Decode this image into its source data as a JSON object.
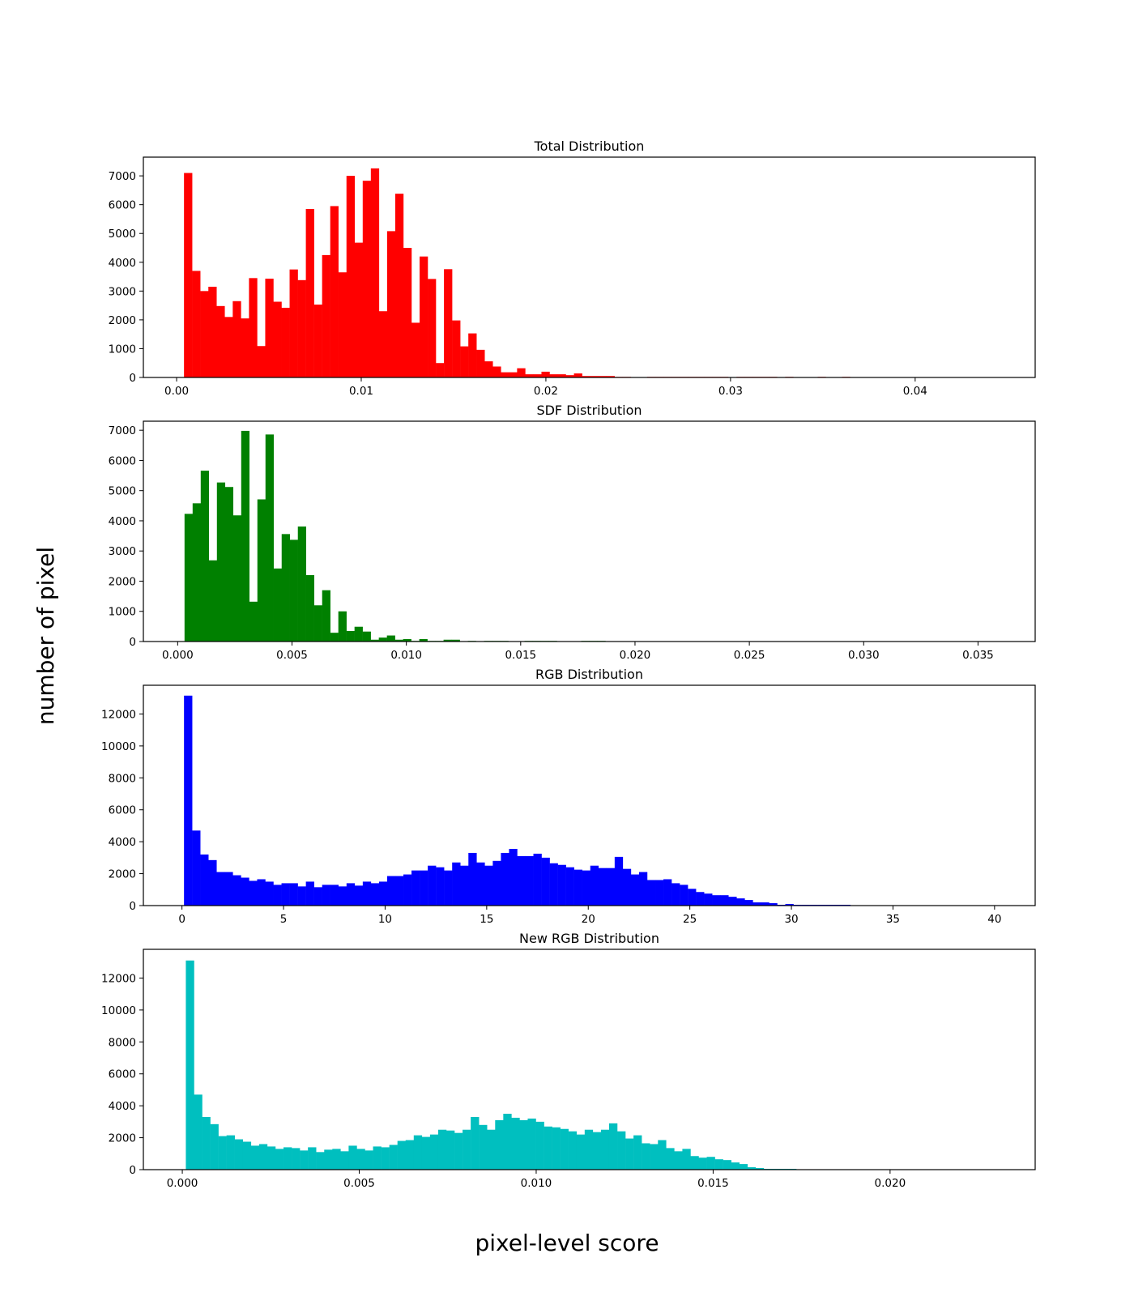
{
  "figure": {
    "xlabel": "pixel-level score",
    "ylabel": "number of pixel"
  },
  "chart_data": [
    {
      "type": "bar",
      "title": "Total Distribution",
      "xlabel": "",
      "ylabel": "",
      "color": "#ff0000",
      "xlim": [
        -0.0018,
        0.0465
      ],
      "ylim": [
        0,
        7650
      ],
      "xticks": [
        0.0,
        0.01,
        0.02,
        0.03,
        0.04
      ],
      "xtick_labels": [
        "0.00",
        "0.01",
        "0.02",
        "0.03",
        "0.04"
      ],
      "yticks": [
        0,
        1000,
        2000,
        3000,
        4000,
        5000,
        6000,
        7000
      ],
      "ytick_labels": [
        "0",
        "1000",
        "2000",
        "3000",
        "4000",
        "5000",
        "6000",
        "7000"
      ],
      "bin_start": 0.0004,
      "bin_width": 0.00044,
      "values": [
        7100,
        3700,
        3000,
        3150,
        2480,
        2100,
        2650,
        2050,
        3450,
        1090,
        3430,
        2630,
        2420,
        3750,
        3380,
        5850,
        2530,
        4250,
        5950,
        3650,
        7000,
        4680,
        6830,
        7260,
        2300,
        5080,
        6380,
        4500,
        1900,
        4200,
        3420,
        500,
        3760,
        1980,
        1080,
        1530,
        960,
        560,
        380,
        180,
        180,
        320,
        110,
        110,
        200,
        110,
        110,
        80,
        140,
        50,
        50,
        50,
        50,
        20,
        20,
        10,
        10,
        20,
        20,
        20,
        20,
        20,
        20,
        20,
        20,
        20,
        20,
        0,
        20,
        20,
        20,
        20,
        20,
        0,
        20,
        0,
        0,
        0,
        20,
        0,
        0,
        20,
        0,
        0,
        10,
        0,
        0,
        0,
        0,
        0,
        0,
        0,
        0,
        0,
        0,
        0,
        0,
        0,
        0,
        0
      ]
    },
    {
      "type": "bar",
      "title": "SDF Distribution",
      "xlabel": "",
      "ylabel": "",
      "color": "#008000",
      "xlim": [
        -0.0015,
        0.0375
      ],
      "ylim": [
        0,
        7300
      ],
      "xticks": [
        0.0,
        0.005,
        0.01,
        0.015,
        0.02,
        0.025,
        0.03,
        0.035
      ],
      "xtick_labels": [
        "0.000",
        "0.005",
        "0.010",
        "0.015",
        "0.020",
        "0.025",
        "0.030",
        "0.035"
      ],
      "yticks": [
        0,
        1000,
        2000,
        3000,
        4000,
        5000,
        6000,
        7000
      ],
      "ytick_labels": [
        "0",
        "1000",
        "2000",
        "3000",
        "4000",
        "5000",
        "6000",
        "7000"
      ],
      "bin_start": 0.0003,
      "bin_width": 0.000354,
      "values": [
        4230,
        4580,
        5660,
        2690,
        5270,
        5120,
        4180,
        6980,
        1320,
        4710,
        6860,
        2420,
        3560,
        3370,
        3810,
        2200,
        1200,
        1700,
        290,
        1000,
        350,
        490,
        330,
        60,
        130,
        200,
        60,
        80,
        20,
        80,
        20,
        20,
        60,
        60,
        10,
        20,
        10,
        20,
        20,
        20,
        10,
        10,
        20,
        20,
        20,
        20,
        10,
        10,
        10,
        20,
        20,
        20,
        10,
        10,
        10,
        10,
        10,
        0,
        10,
        10,
        0,
        0,
        0,
        0,
        0,
        0,
        0,
        0,
        0,
        0,
        0,
        0,
        0,
        0,
        0,
        0,
        0,
        0,
        0,
        0,
        0,
        0,
        0,
        0,
        0,
        0,
        0,
        0,
        0,
        0,
        0,
        0,
        0,
        0,
        0,
        0,
        0,
        0,
        0,
        0
      ]
    },
    {
      "type": "bar",
      "title": "RGB Distribution",
      "xlabel": "",
      "ylabel": "",
      "color": "#0000ff",
      "xlim": [
        -1.9,
        42.0
      ],
      "ylim": [
        0,
        13800
      ],
      "xticks": [
        0,
        5,
        10,
        15,
        20,
        25,
        30,
        35,
        40
      ],
      "xtick_labels": [
        "0",
        "5",
        "10",
        "15",
        "20",
        "25",
        "30",
        "35",
        "40"
      ],
      "yticks": [
        0,
        2000,
        4000,
        6000,
        8000,
        10000,
        12000
      ],
      "ytick_labels": [
        "0",
        "2000",
        "4000",
        "6000",
        "8000",
        "10000",
        "12000"
      ],
      "bin_start": 0.1,
      "bin_width": 0.4,
      "values": [
        13150,
        4700,
        3200,
        2850,
        2100,
        2100,
        1900,
        1750,
        1550,
        1650,
        1500,
        1300,
        1400,
        1400,
        1200,
        1500,
        1150,
        1300,
        1300,
        1200,
        1400,
        1250,
        1500,
        1400,
        1500,
        1850,
        1850,
        1950,
        2200,
        2200,
        2500,
        2400,
        2200,
        2700,
        2500,
        3300,
        2700,
        2500,
        2800,
        3300,
        3550,
        3100,
        3100,
        3250,
        3000,
        2650,
        2550,
        2400,
        2250,
        2200,
        2500,
        2350,
        2350,
        3050,
        2300,
        1950,
        2100,
        1600,
        1600,
        1650,
        1400,
        1300,
        1050,
        850,
        750,
        650,
        650,
        550,
        450,
        350,
        200,
        200,
        150,
        50,
        100,
        50,
        50,
        50,
        50,
        50,
        50,
        50,
        20,
        20,
        20,
        20,
        20,
        20,
        20,
        20,
        20,
        20,
        20,
        20,
        20,
        20,
        20,
        20,
        20,
        20
      ]
    },
    {
      "type": "bar",
      "title": "New RGB Distribution",
      "xlabel": "",
      "ylabel": "",
      "color": "#00bfbf",
      "xlim": [
        -0.0011,
        0.0241
      ],
      "ylim": [
        0,
        13800
      ],
      "xticks": [
        0.0,
        0.005,
        0.01,
        0.015,
        0.02
      ],
      "xtick_labels": [
        "0.000",
        "0.005",
        "0.010",
        "0.015",
        "0.020"
      ],
      "yticks": [
        0,
        2000,
        4000,
        6000,
        8000,
        10000,
        12000
      ],
      "ytick_labels": [
        "0",
        "2000",
        "4000",
        "6000",
        "8000",
        "10000",
        "12000"
      ],
      "bin_start": 0.0001,
      "bin_width": 0.00023,
      "values": [
        13100,
        4700,
        3300,
        2850,
        2100,
        2150,
        1900,
        1750,
        1500,
        1600,
        1450,
        1300,
        1400,
        1350,
        1200,
        1400,
        1100,
        1250,
        1300,
        1150,
        1500,
        1300,
        1200,
        1450,
        1400,
        1550,
        1800,
        1850,
        2150,
        2050,
        2200,
        2500,
        2450,
        2300,
        2500,
        3300,
        2800,
        2500,
        3100,
        3500,
        3250,
        3100,
        3200,
        3000,
        2700,
        2650,
        2550,
        2400,
        2200,
        2500,
        2350,
        2500,
        2900,
        2400,
        1950,
        2150,
        1650,
        1600,
        1850,
        1350,
        1150,
        1300,
        850,
        750,
        800,
        650,
        600,
        450,
        350,
        150,
        100,
        50,
        50,
        50,
        50,
        20,
        20,
        20,
        20,
        20,
        20,
        20,
        20,
        20,
        20,
        20,
        20,
        20,
        20,
        20,
        20,
        20,
        20,
        20,
        20,
        0,
        0,
        0,
        0,
        0
      ]
    }
  ]
}
